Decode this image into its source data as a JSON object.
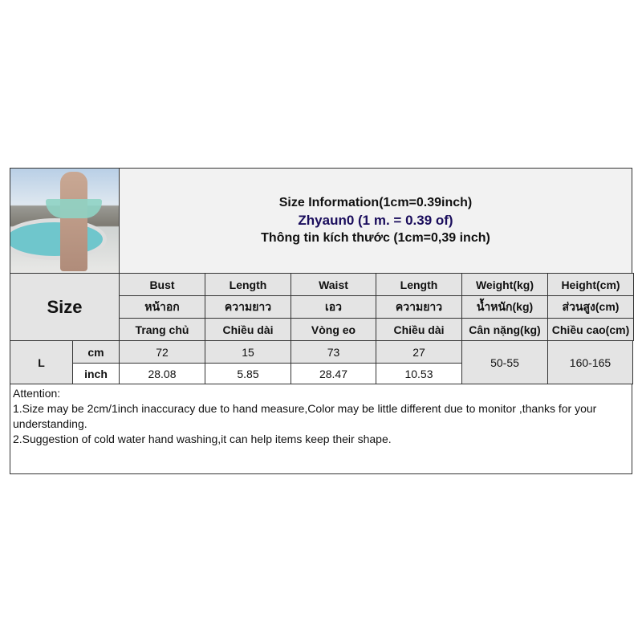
{
  "title": {
    "line1": "Size Information(1cm=0.39inch)",
    "line2": "Zhyaun0 (1 m. = 0.39 of)",
    "line3": "Thông tin kích thước (1cm=0,39 inch)",
    "line2_color": "#1a0d5c"
  },
  "size_label": "Size",
  "headers": [
    [
      "Bust",
      "หน้าอก",
      "Trang chủ"
    ],
    [
      "Length",
      "ความยาว",
      "Chiều dài"
    ],
    [
      "Waist",
      "เอว",
      "Vòng eo"
    ],
    [
      "Length",
      "ความยาว",
      "Chiều dài"
    ],
    [
      "Weight(kg)",
      "น้ำหนัก(kg)",
      "Cân nặng(kg)"
    ],
    [
      "Height(cm)",
      "ส่วนสูง(cm)",
      "Chiều cao(cm)"
    ]
  ],
  "rows": {
    "size": "L",
    "cm_label": "cm",
    "inch_label": "inch",
    "cm": [
      "72",
      "15",
      "73",
      "27"
    ],
    "inch": [
      "28.08",
      "5.85",
      "28.47",
      "10.53"
    ],
    "weight": "50-55",
    "height": "160-165"
  },
  "attention": {
    "title": "Attention:",
    "line1": "1.Size may be 2cm/1inch inaccuracy due to hand measure,Color may be little different due to monitor ,thanks for your understanding.",
    "line2": "2.Suggestion of cold water hand washing,it can help items keep their shape."
  }
}
